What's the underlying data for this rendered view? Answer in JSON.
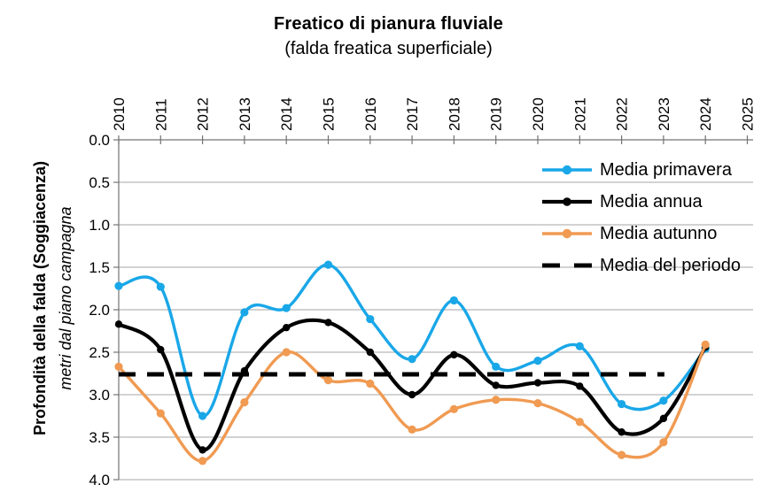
{
  "chart_data": {
    "type": "line",
    "title": "Freatico di pianura fluviale",
    "subtitle": "(falda freatica superficiale)",
    "ylabel": "Profondità della falda (Soggiacenza)",
    "ylabel_sub": "metri dal piano campagna",
    "x_axis_position": "top",
    "x_tick_labels": [
      "2010",
      "2011",
      "2012",
      "2013",
      "2014",
      "2015",
      "2016",
      "2017",
      "2018",
      "2019",
      "2020",
      "2021",
      "2022",
      "2023",
      "2024",
      "2025"
    ],
    "categories": [
      2010,
      2011,
      2012,
      2013,
      2014,
      2015,
      2016,
      2017,
      2018,
      2019,
      2020,
      2021,
      2022,
      2023,
      2024
    ],
    "series": [
      {
        "name": "Media primavera",
        "color": "#19A7E8",
        "line_width": 3.4,
        "marker_radius": 4.6,
        "smooth": true,
        "values": [
          1.72,
          1.73,
          3.25,
          2.03,
          1.98,
          1.47,
          2.11,
          2.58,
          1.89,
          2.67,
          2.6,
          2.43,
          3.11,
          3.07,
          2.46
        ]
      },
      {
        "name": "Media annua",
        "color": "#000000",
        "line_width": 4.2,
        "marker_radius": 4.2,
        "smooth": true,
        "values": [
          2.17,
          2.47,
          3.65,
          2.72,
          2.21,
          2.15,
          2.5,
          3.0,
          2.53,
          2.89,
          2.86,
          2.9,
          3.44,
          3.28,
          2.44
        ]
      },
      {
        "name": "Media autunno",
        "color": "#F09A52",
        "line_width": 3.4,
        "marker_radius": 4.6,
        "smooth": true,
        "values": [
          2.67,
          3.22,
          3.78,
          3.09,
          2.5,
          2.83,
          2.87,
          3.41,
          3.17,
          3.06,
          3.1,
          3.32,
          3.71,
          3.56,
          2.41
        ]
      }
    ],
    "reference_line": {
      "name": "Media del periodo",
      "value": 2.76,
      "color": "#000000",
      "style": "dashed",
      "line_width": 5,
      "start_year": 2010,
      "end_year": 2023
    },
    "y_ticks": [
      "0.0",
      "0.5",
      "1.0",
      "1.5",
      "2.0",
      "2.5",
      "3.0",
      "3.5",
      "4.0"
    ],
    "ylim": [
      0.0,
      4.0
    ],
    "y_inverted": true,
    "grid": "horizontal",
    "legend_position": "top-right-inside",
    "colors": {
      "primavera": "#19A7E8",
      "annua": "#000000",
      "autunno": "#F09A52",
      "grid": "#A6A6A6",
      "axis": "#737373",
      "text": "#000000",
      "background": "#FFFFFF"
    }
  }
}
